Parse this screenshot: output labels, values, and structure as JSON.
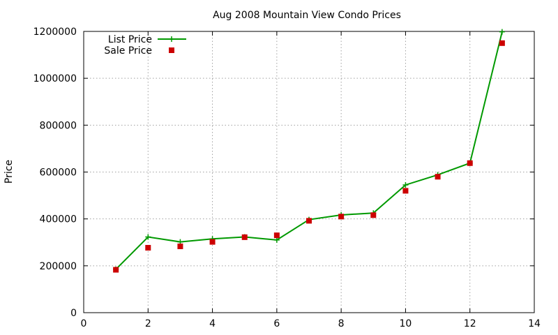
{
  "chart_data": {
    "type": "line",
    "title": "Aug 2008 Mountain View Condo Prices",
    "xlabel": "",
    "ylabel": "Price",
    "xlim": [
      0,
      14
    ],
    "ylim": [
      0,
      1200000
    ],
    "xticks": [
      0,
      2,
      4,
      6,
      8,
      10,
      12,
      14
    ],
    "yticks": [
      0,
      200000,
      400000,
      600000,
      800000,
      1000000,
      1200000
    ],
    "grid": true,
    "legend_position": "top-left",
    "series": [
      {
        "name": "List Price",
        "style": "line-with-plus-markers",
        "color": "#009900",
        "x": [
          1,
          2,
          3,
          4,
          5,
          6,
          7,
          8,
          9,
          10,
          11,
          12,
          13
        ],
        "y": [
          185000,
          323000,
          302000,
          315000,
          323000,
          310000,
          397000,
          417000,
          425000,
          545000,
          588000,
          638000,
          1198000
        ]
      },
      {
        "name": "Sale Price",
        "style": "square-markers",
        "color": "#cc0000",
        "x": [
          1,
          2,
          3,
          4,
          5,
          6,
          7,
          8,
          9,
          10,
          11,
          12,
          13
        ],
        "y": [
          183000,
          277000,
          283000,
          302000,
          322000,
          330000,
          392000,
          410000,
          416000,
          520000,
          580000,
          638000,
          1150000
        ]
      }
    ]
  }
}
